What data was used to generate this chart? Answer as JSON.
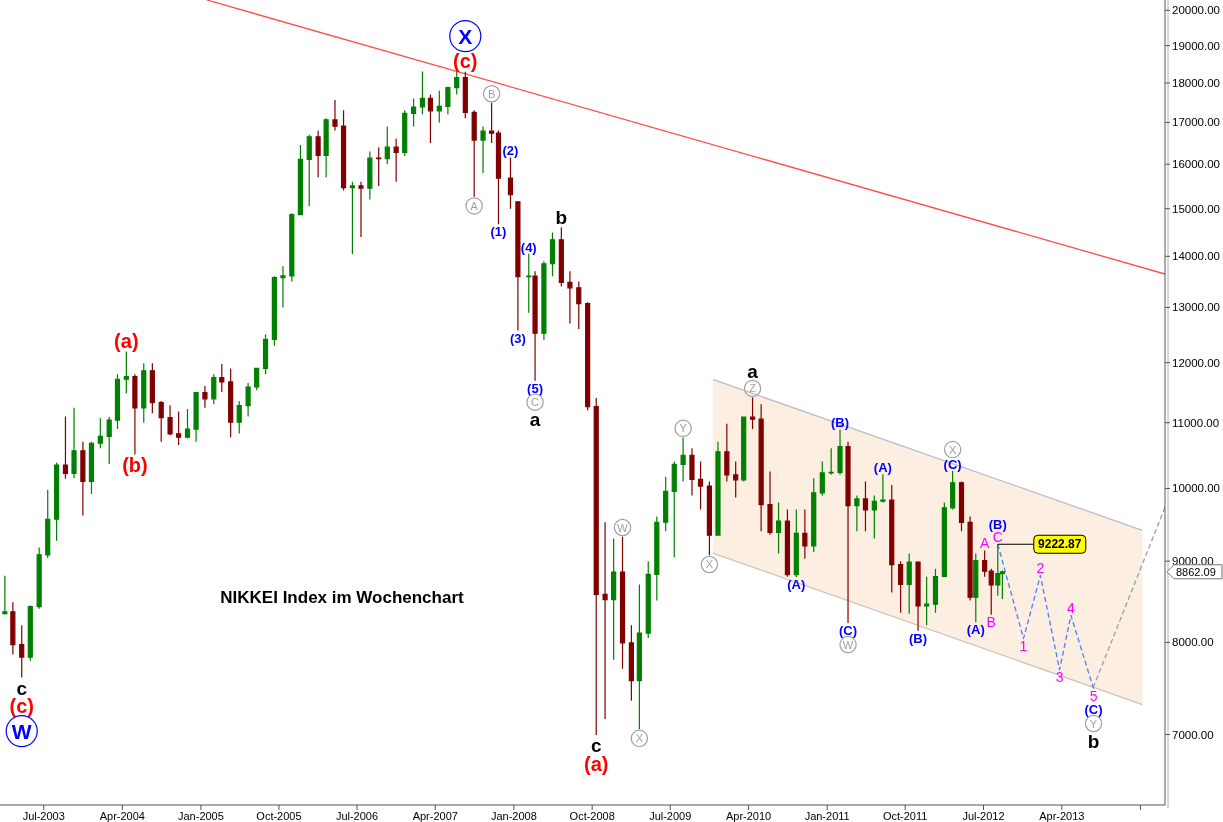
{
  "chart_data": {
    "type": "candlestick",
    "title": "NIKKEI Index im Wochenchart",
    "log": "y",
    "xlim": [
      "2003-01-29",
      "2014-03-28"
    ],
    "xticks": [
      {
        "value": "2003-07-01",
        "label": "Jul-2003"
      },
      {
        "value": "2004-04-01",
        "label": "Apr-2004"
      },
      {
        "value": "2005-01-01",
        "label": "Jan-2005"
      },
      {
        "value": "2005-10-01",
        "label": "Oct-2005"
      },
      {
        "value": "2006-07-01",
        "label": "Jul-2006"
      },
      {
        "value": "2007-04-01",
        "label": "Apr-2007"
      },
      {
        "value": "2008-01-01",
        "label": "Jan-2008"
      },
      {
        "value": "2008-10-01",
        "label": "Oct-2008"
      },
      {
        "value": "2009-07-01",
        "label": "Jul-2009"
      },
      {
        "value": "2010-04-01",
        "label": "Apr-2010"
      },
      {
        "value": "2011-01-01",
        "label": "Jan-2011"
      },
      {
        "value": "2011-10-01",
        "label": "Oct-2011"
      },
      {
        "value": "2012-07-01",
        "label": "Jul-2012"
      },
      {
        "value": "2013-04-01",
        "label": "Apr-2013"
      },
      {
        "value": "2014-01-01",
        "label": null
      }
    ],
    "ylim": [
      6320,
      20300
    ],
    "yticks": [
      {
        "value": 7000,
        "label": "7000.00"
      },
      {
        "value": 8000,
        "label": "8000.00"
      },
      {
        "value": 9000,
        "label": "9000.00"
      },
      {
        "value": 10000,
        "label": "10000.00"
      },
      {
        "value": 11000,
        "label": "11000.00"
      },
      {
        "value": 12000,
        "label": "12000.00"
      },
      {
        "value": 13000,
        "label": "13000.00"
      },
      {
        "value": 14000,
        "label": "14000.00"
      },
      {
        "value": 15000,
        "label": "15000.00"
      },
      {
        "value": 16000,
        "label": "16000.00"
      },
      {
        "value": 17000,
        "label": "17000.00"
      },
      {
        "value": 18000,
        "label": "18000.00"
      },
      {
        "value": 19000,
        "label": "19000.00"
      },
      {
        "value": 20000,
        "label": "20000.00"
      }
    ],
    "x": [
      "2003-02-15",
      "2003-03-15",
      "2003-04-15",
      "2003-05-15",
      "2003-06-15",
      "2003-07-15",
      "2003-08-15",
      "2003-09-15",
      "2003-10-15",
      "2003-11-15",
      "2003-12-15",
      "2004-01-15",
      "2004-02-15",
      "2004-03-15",
      "2004-04-15",
      "2004-05-15",
      "2004-06-15",
      "2004-07-15",
      "2004-08-15",
      "2004-09-15",
      "2004-10-15",
      "2004-11-15",
      "2004-12-15",
      "2005-01-15",
      "2005-02-15",
      "2005-03-15",
      "2005-04-15",
      "2005-05-15",
      "2005-06-15",
      "2005-07-15",
      "2005-08-15",
      "2005-09-15",
      "2005-10-15",
      "2005-11-15",
      "2005-12-15",
      "2006-01-15",
      "2006-02-15",
      "2006-03-15",
      "2006-04-15",
      "2006-05-15",
      "2006-06-15",
      "2006-07-15",
      "2006-08-15",
      "2006-09-15",
      "2006-10-15",
      "2006-11-15",
      "2006-12-15",
      "2007-01-15",
      "2007-02-15",
      "2007-03-15",
      "2007-04-15",
      "2007-05-15",
      "2007-06-15",
      "2007-07-15",
      "2007-08-15",
      "2007-09-15",
      "2007-10-15",
      "2007-11-08",
      "2007-12-20",
      "2008-01-15",
      "2008-02-22",
      "2008-03-15",
      "2008-04-15",
      "2008-05-15",
      "2008-06-15",
      "2008-07-15",
      "2008-08-15",
      "2008-09-15",
      "2008-10-15",
      "2008-11-15",
      "2008-12-15",
      "2009-01-15",
      "2009-02-15",
      "2009-03-15",
      "2009-04-15",
      "2009-05-15",
      "2009-06-15",
      "2009-07-15",
      "2009-08-15",
      "2009-09-15",
      "2009-10-15",
      "2009-11-15",
      "2009-12-15",
      "2010-01-15",
      "2010-02-15",
      "2010-03-15",
      "2010-04-15",
      "2010-05-15",
      "2010-06-15",
      "2010-07-15",
      "2010-08-15",
      "2010-09-15",
      "2010-10-15",
      "2010-11-15",
      "2010-12-15",
      "2011-01-15",
      "2011-02-15",
      "2011-03-15",
      "2011-04-15",
      "2011-05-15",
      "2011-06-15",
      "2011-07-15",
      "2011-08-15",
      "2011-09-15",
      "2011-10-15",
      "2011-11-15",
      "2011-12-15",
      "2012-01-15",
      "2012-02-15",
      "2012-03-15",
      "2012-04-15",
      "2012-05-15",
      "2012-06-04",
      "2012-07-05",
      "2012-07-28",
      "2012-08-20",
      "2012-09-05"
    ],
    "ohlc": [
      [
        8340,
        8810,
        8330,
        8363
      ],
      [
        8363,
        8480,
        7860,
        7973
      ],
      [
        7973,
        8200,
        7603,
        7831
      ],
      [
        7831,
        8440,
        7790,
        8425
      ],
      [
        8425,
        9180,
        8400,
        9083
      ],
      [
        9083,
        9980,
        9040,
        9563
      ],
      [
        9563,
        10380,
        9270,
        10344
      ],
      [
        10344,
        11100,
        10140,
        10219
      ],
      [
        10219,
        11240,
        10150,
        10560
      ],
      [
        10560,
        10700,
        9615,
        10101
      ],
      [
        10101,
        10700,
        9920,
        10677
      ],
      [
        10677,
        11070,
        10600,
        10784
      ],
      [
        10784,
        11090,
        10360,
        11042
      ],
      [
        11042,
        11800,
        10900,
        11715
      ],
      [
        11715,
        12195,
        11480,
        11762
      ],
      [
        11762,
        11800,
        10505,
        11237
      ],
      [
        11237,
        11990,
        11000,
        11859
      ],
      [
        11859,
        11990,
        11150,
        11326
      ],
      [
        11326,
        11350,
        10700,
        11082
      ],
      [
        11082,
        11280,
        10800,
        10824
      ],
      [
        10824,
        11180,
        10650,
        10771
      ],
      [
        10771,
        11220,
        10750,
        10899
      ],
      [
        10899,
        11500,
        10700,
        11489
      ],
      [
        11489,
        11600,
        11240,
        11388
      ],
      [
        11388,
        11800,
        11300,
        11741
      ],
      [
        11741,
        11975,
        11500,
        11669
      ],
      [
        11669,
        11900,
        10770,
        11009
      ],
      [
        11009,
        11350,
        10830,
        11277
      ],
      [
        11277,
        11650,
        11100,
        11584
      ],
      [
        11584,
        11900,
        11530,
        11900
      ],
      [
        11900,
        12500,
        11800,
        12413
      ],
      [
        12413,
        13600,
        12300,
        13574
      ],
      [
        13574,
        13800,
        13000,
        13607
      ],
      [
        13607,
        14900,
        13500,
        14872
      ],
      [
        14872,
        16450,
        14870,
        16111
      ],
      [
        16111,
        16700,
        15060,
        16650
      ],
      [
        16650,
        16800,
        15700,
        16205
      ],
      [
        16205,
        17100,
        15700,
        17060
      ],
      [
        17060,
        17563,
        16800,
        16906
      ],
      [
        16906,
        17300,
        15400,
        15468
      ],
      [
        15468,
        15600,
        14045,
        15505
      ],
      [
        15505,
        15600,
        14400,
        15457
      ],
      [
        15457,
        16300,
        15200,
        16141
      ],
      [
        16141,
        16400,
        15500,
        16128
      ],
      [
        16128,
        16900,
        16000,
        16399
      ],
      [
        16399,
        16600,
        15600,
        16274
      ],
      [
        16274,
        17300,
        16200,
        17226
      ],
      [
        17226,
        17600,
        16900,
        17383
      ],
      [
        17383,
        18300,
        17200,
        17604
      ],
      [
        17604,
        17700,
        16500,
        17288
      ],
      [
        17288,
        17800,
        17000,
        17400
      ],
      [
        17400,
        17900,
        17200,
        17876
      ],
      [
        17876,
        18300,
        17700,
        18138
      ],
      [
        18138,
        18297,
        17100,
        17249
      ],
      [
        17249,
        17300,
        15262,
        16569
      ],
      [
        16569,
        16900,
        15800,
        16786
      ],
      [
        16786,
        17488,
        16500,
        16737
      ],
      [
        16737,
        16800,
        14669,
        15680
      ],
      [
        15680,
        16155,
        15000,
        15307
      ],
      [
        15150,
        15160,
        12573,
        13592
      ],
      [
        13592,
        14050,
        12900,
        13603
      ],
      [
        13603,
        13700,
        11691,
        12525
      ],
      [
        12525,
        13900,
        12400,
        13850
      ],
      [
        13850,
        14490,
        13600,
        14338
      ],
      [
        14338,
        14601,
        13400,
        13481
      ],
      [
        13481,
        13700,
        12700,
        13376
      ],
      [
        13376,
        13500,
        12600,
        13072
      ],
      [
        13072,
        13100,
        11200,
        11259
      ],
      [
        11259,
        11400,
        6994,
        8576
      ],
      [
        8576,
        9521,
        7160,
        8512
      ],
      [
        8512,
        9300,
        7800,
        8859
      ],
      [
        8859,
        9325,
        7700,
        7994
      ],
      [
        7994,
        8200,
        7350,
        7568
      ],
      [
        7568,
        8700,
        7054,
        8109
      ],
      [
        8109,
        9000,
        8050,
        8828
      ],
      [
        8828,
        9600,
        8500,
        9522
      ],
      [
        9522,
        10170,
        9400,
        9958
      ],
      [
        9958,
        10400,
        9050,
        10356
      ],
      [
        10356,
        10767,
        10100,
        10492
      ],
      [
        10492,
        10600,
        9900,
        10133
      ],
      [
        10133,
        10400,
        9700,
        10034
      ],
      [
        10034,
        10100,
        9076,
        9345
      ],
      [
        9345,
        10700,
        9340,
        10546
      ],
      [
        10546,
        10983,
        10100,
        10198
      ],
      [
        10198,
        10400,
        9870,
        10126
      ],
      [
        10126,
        11100,
        10100,
        11089
      ],
      [
        11089,
        11408,
        10900,
        11057
      ],
      [
        11057,
        11300,
        9400,
        9768
      ],
      [
        9768,
        10250,
        9350,
        9382
      ],
      [
        9382,
        9800,
        9100,
        9537
      ],
      [
        9537,
        9700,
        8800,
        8824
      ],
      [
        8824,
        9700,
        8796,
        9369
      ],
      [
        9369,
        9700,
        9030,
        9202
      ],
      [
        9202,
        10150,
        9120,
        9937
      ],
      [
        9937,
        10400,
        9900,
        10228
      ],
      [
        10228,
        10600,
        10200,
        10237
      ],
      [
        10237,
        10891,
        10200,
        10624
      ],
      [
        10624,
        10700,
        8227,
        9755
      ],
      [
        9755,
        9900,
        9400,
        9849
      ],
      [
        9849,
        10100,
        9400,
        9693
      ],
      [
        9693,
        9900,
        9300,
        9816
      ],
      [
        9816,
        10207,
        9800,
        9833
      ],
      [
        9833,
        10050,
        8600,
        8955
      ],
      [
        8955,
        9000,
        8350,
        8700
      ],
      [
        8700,
        9100,
        8340,
        8988
      ],
      [
        8988,
        9000,
        8135,
        8434
      ],
      [
        8434,
        8800,
        8200,
        8455
      ],
      [
        8455,
        8900,
        8350,
        8802
      ],
      [
        8802,
        9800,
        8800,
        9723
      ],
      [
        9723,
        10255,
        9700,
        10083
      ],
      [
        10083,
        10100,
        9400,
        9520
      ],
      [
        9520,
        9600,
        8500,
        8542
      ],
      [
        8542,
        9100,
        8238,
        9006
      ],
      [
        9006,
        9140,
        8800,
        8870
      ],
      [
        8870,
        8900,
        8328,
        8695
      ],
      [
        8695,
        9222.87,
        8560,
        8839
      ],
      [
        8839,
        8880,
        8520,
        8862.09
      ]
    ],
    "colors": [
      "#008000",
      "#800000",
      "#800000",
      "#008000",
      "#008000",
      "#008000",
      "#008000",
      "#800000",
      "#008000",
      "#800000",
      "#008000",
      "#008000",
      "#008000",
      "#008000",
      "#008000",
      "#800000",
      "#008000",
      "#800000",
      "#800000",
      "#800000",
      "#800000",
      "#008000",
      "#008000",
      "#800000",
      "#008000",
      "#800000",
      "#800000",
      "#008000",
      "#008000",
      "#008000",
      "#008000",
      "#008000",
      "#008000",
      "#008000",
      "#008000",
      "#008000",
      "#800000",
      "#008000",
      "#800000",
      "#800000",
      "#008000",
      "#800000",
      "#008000",
      "#800000",
      "#008000",
      "#800000",
      "#008000",
      "#008000",
      "#008000",
      "#800000",
      "#008000",
      "#008000",
      "#008000",
      "#800000",
      "#800000",
      "#008000",
      "#800000",
      "#800000",
      "#800000",
      "#800000",
      "#008000",
      "#800000",
      "#008000",
      "#008000",
      "#800000",
      "#800000",
      "#800000",
      "#800000",
      "#800000",
      "#800000",
      "#008000",
      "#800000",
      "#800000",
      "#008000",
      "#008000",
      "#008000",
      "#008000",
      "#008000",
      "#008000",
      "#800000",
      "#800000",
      "#800000",
      "#008000",
      "#800000",
      "#800000",
      "#008000",
      "#800000",
      "#800000",
      "#800000",
      "#008000",
      "#800000",
      "#008000",
      "#800000",
      "#008000",
      "#008000",
      "#008000",
      "#008000",
      "#800000",
      "#008000",
      "#800000",
      "#008000",
      "#008000",
      "#800000",
      "#800000",
      "#008000",
      "#800000",
      "#008000",
      "#008000",
      "#008000",
      "#008000",
      "#800000",
      "#800000",
      "#008000",
      "#800000",
      "#800000",
      "#008000",
      "#008000"
    ],
    "series": [
      {
        "type": "line",
        "color": "#b8bccc",
        "x": [
          "2009-11-27",
          "2014-01-08"
        ],
        "values": [
          11712,
          9411
        ],
        "lower": [
          9106,
          7311
        ],
        "upper": [
          11712,
          9411
        ]
      },
      {
        "type": "line",
        "color": "#ccc4bc",
        "x": [
          "2009-11-27",
          "2014-01-08"
        ],
        "values": [
          9106,
          7311
        ]
      },
      {
        "type": "line",
        "color": "#9c9ca8",
        "line_style": "dashed",
        "x": [
          "2013-07-20",
          "2014-03-28"
        ],
        "values": [
          7494,
          9730
        ]
      },
      {
        "type": "line",
        "color": "#ff4a4a",
        "x": [
          "2005-01-22",
          "2014-03-28"
        ],
        "values": [
          20300,
          13645
        ]
      },
      {
        "type": "line",
        "color": "#4d7fff",
        "line_style": "dashed",
        "x": [
          "2012-08-20",
          "2012-11-18",
          "2013-01-16",
          "2013-03-24",
          "2013-05-03",
          "2013-07-21"
        ],
        "values": [
          9222.87,
          8043,
          8817,
          7689,
          8319,
          7480
        ]
      }
    ],
    "annotations": [
      {
        "text": "A",
        "x": "2012-07-05",
        "y": 9140
      },
      {
        "text": "C",
        "x": "2012-08-20",
        "y": 9222.87
      },
      {
        "text": "B",
        "x": "2012-07-28",
        "y": 8328
      },
      {
        "text": "1",
        "x": "2012-11-18",
        "y": 8043
      },
      {
        "text": "2",
        "x": "2013-01-16",
        "y": 8817
      },
      {
        "text": "3",
        "x": "2013-03-24",
        "y": 7689
      },
      {
        "text": "4",
        "x": "2013-05-03",
        "y": 8319
      },
      {
        "text": "5",
        "x": "2013-07-21",
        "y": 7480
      },
      {
        "text": "(2)",
        "x": "2007-12-20",
        "y": 16155
      },
      {
        "text": "(1)",
        "x": "2007-11-08",
        "y": 14669
      },
      {
        "text": "(4)",
        "x": "2008-02-22",
        "y": 14050
      },
      {
        "text": "(3)",
        "x": "2008-01-15",
        "y": 12573
      },
      {
        "text": "(5)",
        "x": "2008-03-15",
        "y": 11691
      },
      {
        "text": "(B)",
        "x": "2011-02-15",
        "y": 10891
      },
      {
        "text": "(A)",
        "x": "2011-07-15",
        "y": 10207
      },
      {
        "text": "(C)",
        "x": "2012-03-15",
        "y": 10255
      },
      {
        "text": "(B)",
        "x": "2012-08-20",
        "y": 9222.87
      },
      {
        "text": "(A)",
        "x": "2010-09-15",
        "y": 8796
      },
      {
        "text": "(C)",
        "x": "2011-03-15",
        "y": 8227
      },
      {
        "text": "(B)",
        "x": "2011-11-15",
        "y": 8135
      },
      {
        "text": "(A)",
        "x": "2012-06-04",
        "y": 8238
      },
      {
        "text": "(C)",
        "x": "2013-07-21",
        "y": 7480
      },
      {
        "text": "B",
        "x": "2007-10-15",
        "y": 17488
      },
      {
        "text": "A",
        "x": "2007-08-15",
        "y": 15262
      },
      {
        "text": "C",
        "x": "2008-03-15",
        "y": 11691
      },
      {
        "text": "W",
        "x": "2009-01-15",
        "y": 9325
      },
      {
        "text": "X",
        "x": "2009-03-15",
        "y": 7054
      },
      {
        "text": "Y",
        "x": "2009-08-15",
        "y": 10767
      },
      {
        "text": "X",
        "x": "2009-11-15",
        "y": 9076
      },
      {
        "text": "Z",
        "x": "2010-04-15",
        "y": 11408
      },
      {
        "text": "W",
        "x": "2011-03-15",
        "y": 8227
      },
      {
        "text": "X",
        "x": "2012-03-15",
        "y": 10255
      },
      {
        "text": "Y",
        "x": "2013-07-21",
        "y": 7480
      },
      {
        "text": "c",
        "x": "2003-04-15",
        "y": 7603
      },
      {
        "text": "b",
        "x": "2008-06-15",
        "y": 14601
      },
      {
        "text": "a",
        "x": "2008-03-15",
        "y": 11691
      },
      {
        "text": "c",
        "x": "2008-10-15",
        "y": 6994
      },
      {
        "text": "a",
        "x": "2010-04-15",
        "y": 11408
      },
      {
        "text": "b",
        "x": "2013-07-21",
        "y": 7480
      },
      {
        "text": "(c)",
        "x": "2003-04-15",
        "y": 7603
      },
      {
        "text": "(a)",
        "x": "2004-04-15",
        "y": 12195
      },
      {
        "text": "(b)",
        "x": "2004-05-15",
        "y": 10505
      },
      {
        "text": "(c)",
        "x": "2007-07-15",
        "y": 18297
      },
      {
        "text": "(a)",
        "x": "2008-10-15",
        "y": 6994
      },
      {
        "text": "W",
        "x": "2003-04-15",
        "y": 7603
      },
      {
        "text": "X",
        "x": "2007-07-15",
        "y": 18297
      },
      {
        "text": "9222.87",
        "x": "2012-08-20",
        "y": 9222.87
      },
      "8862.09"
    ]
  }
}
